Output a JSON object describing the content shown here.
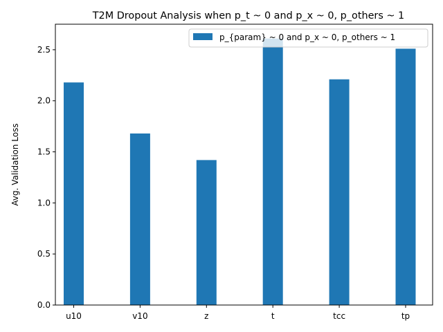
{
  "chart_data": {
    "type": "bar",
    "title": "T2M Dropout Analysis when p_t ~ 0 and p_x ~ 0, p_others ~ 1",
    "xlabel": "",
    "ylabel": "Avg. Validation Loss",
    "categories": [
      "u10",
      "v10",
      "z",
      "t",
      "tcc",
      "tp"
    ],
    "series": [
      {
        "name": "p_{param} ~ 0 and p_x ~ 0, p_others ~ 1",
        "values": [
          2.18,
          1.68,
          1.42,
          2.61,
          2.21,
          2.51
        ],
        "color": "#1f77b4"
      }
    ],
    "ylim": [
      0,
      2.75
    ],
    "yticks": [
      "0.0",
      "0.5",
      "1.0",
      "1.5",
      "2.0",
      "2.5"
    ],
    "grid": false,
    "legend_position": "top-right"
  }
}
